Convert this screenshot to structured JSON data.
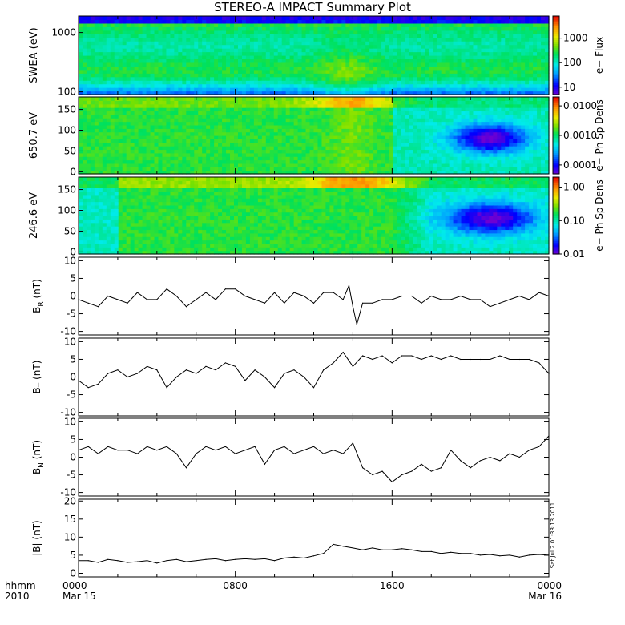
{
  "title": "STEREO-A IMPACT Summary Plot",
  "footer": {
    "row1_label": "hhmm",
    "row2_label": "2010",
    "timestamp": "Sat Jul  2 01:38:13 2011"
  },
  "chart_data": [
    {
      "type": "heatmap",
      "ylabel": "SWEA (eV)",
      "y_scale": "log",
      "ylim": [
        90,
        1900
      ],
      "yticks": [
        "1000",
        "100"
      ],
      "colorbar": {
        "label": "e− Flux",
        "scale": "log",
        "range": [
          5,
          8000
        ],
        "ticks": [
          "1000",
          "100",
          "10"
        ]
      },
      "x_range_hours": [
        0,
        24
      ],
      "features": [
        {
          "time_hours": 13.7,
          "description": "flux enhancement at low energies"
        }
      ]
    },
    {
      "type": "heatmap",
      "ylabel": "650.7 eV",
      "ylim": [
        -5,
        180
      ],
      "yticks": [
        "150",
        "100",
        "50",
        "0"
      ],
      "colorbar": {
        "label": "e− Ph Sp Dens",
        "scale": "log",
        "range": [
          5e-05,
          0.02
        ],
        "ticks": [
          "0.0100",
          "0.0010",
          "0.0001"
        ]
      },
      "x_range_hours": [
        0,
        24
      ]
    },
    {
      "type": "heatmap",
      "ylabel": "246.6 eV",
      "ylim": [
        -5,
        180
      ],
      "yticks": [
        "150",
        "100",
        "50",
        "0"
      ],
      "colorbar": {
        "label": "e− Ph Sp Dens",
        "scale": "log",
        "range": [
          0.01,
          2.0
        ],
        "ticks": [
          "1.00",
          "0.10",
          "0.01"
        ]
      },
      "x_range_hours": [
        0,
        24
      ]
    },
    {
      "type": "line",
      "ylabel": "B",
      "ylabel_sub": "R",
      "ylabel_unit": "(nT)",
      "ylim": [
        -11,
        11
      ],
      "yticks": [
        "10",
        "5",
        "0",
        "-5",
        "-10"
      ],
      "x": [
        0,
        0.5,
        1,
        1.5,
        2,
        2.5,
        3,
        3.5,
        4,
        4.5,
        5,
        5.5,
        6,
        6.5,
        7,
        7.5,
        8,
        8.5,
        9,
        9.5,
        10,
        10.5,
        11,
        11.5,
        12,
        12.5,
        13,
        13.5,
        13.8,
        14,
        14.2,
        14.5,
        15,
        15.5,
        16,
        16.5,
        17,
        17.5,
        18,
        18.5,
        19,
        19.5,
        20,
        20.5,
        21,
        21.5,
        22,
        22.5,
        23,
        23.5,
        24
      ],
      "y": [
        -1,
        -2,
        -3,
        0,
        -1,
        -2,
        1,
        -1,
        -1,
        2,
        0,
        -3,
        -1,
        1,
        -1,
        2,
        2,
        0,
        -1,
        -2,
        1,
        -2,
        1,
        0,
        -2,
        1,
        1,
        -1,
        3,
        -3,
        -8,
        -2,
        -2,
        -1,
        -1,
        0,
        0,
        -2,
        0,
        -1,
        -1,
        0,
        -1,
        -1,
        -3,
        -2,
        -1,
        0,
        -1,
        1,
        0
      ]
    },
    {
      "type": "line",
      "ylabel": "B",
      "ylabel_sub": "T",
      "ylabel_unit": "(nT)",
      "ylim": [
        -11,
        11
      ],
      "yticks": [
        "10",
        "5",
        "0",
        "-5",
        "-10"
      ],
      "x": [
        0,
        0.5,
        1,
        1.5,
        2,
        2.5,
        3,
        3.5,
        4,
        4.5,
        5,
        5.5,
        6,
        6.5,
        7,
        7.5,
        8,
        8.5,
        9,
        9.5,
        10,
        10.5,
        11,
        11.5,
        12,
        12.5,
        13,
        13.5,
        14,
        14.5,
        15,
        15.5,
        16,
        16.5,
        17,
        17.5,
        18,
        18.5,
        19,
        19.5,
        20,
        20.5,
        21,
        21.5,
        22,
        22.5,
        23,
        23.5,
        24
      ],
      "y": [
        -1,
        -3,
        -2,
        1,
        2,
        0,
        1,
        3,
        2,
        -3,
        0,
        2,
        1,
        3,
        2,
        4,
        3,
        -1,
        2,
        0,
        -3,
        1,
        2,
        0,
        -3,
        2,
        4,
        7,
        3,
        6,
        5,
        6,
        4,
        6,
        6,
        5,
        6,
        5,
        6,
        5,
        5,
        5,
        5,
        6,
        5,
        5,
        5,
        4,
        1
      ]
    },
    {
      "type": "line",
      "ylabel": "B",
      "ylabel_sub": "N",
      "ylabel_unit": "(nT)",
      "ylim": [
        -11,
        11
      ],
      "yticks": [
        "10",
        "5",
        "0",
        "-5",
        "-10"
      ],
      "x": [
        0,
        0.5,
        1,
        1.5,
        2,
        2.5,
        3,
        3.5,
        4,
        4.5,
        5,
        5.5,
        6,
        6.5,
        7,
        7.5,
        8,
        8.5,
        9,
        9.5,
        10,
        10.5,
        11,
        11.5,
        12,
        12.5,
        13,
        13.5,
        14,
        14.5,
        15,
        15.5,
        16,
        16.5,
        17,
        17.5,
        18,
        18.5,
        19,
        19.5,
        20,
        20.5,
        21,
        21.5,
        22,
        22.5,
        23,
        23.5,
        24
      ],
      "y": [
        2,
        3,
        1,
        3,
        2,
        2,
        1,
        3,
        2,
        3,
        1,
        -3,
        1,
        3,
        2,
        3,
        1,
        2,
        3,
        -2,
        2,
        3,
        1,
        2,
        3,
        1,
        2,
        1,
        4,
        -3,
        -5,
        -4,
        -7,
        -5,
        -4,
        -2,
        -4,
        -3,
        2,
        -1,
        -3,
        -1,
        0,
        -1,
        1,
        0,
        2,
        3,
        6
      ]
    },
    {
      "type": "line",
      "ylabel": "|B|",
      "ylabel_unit": "(nT)",
      "ylim": [
        -1,
        20.5
      ],
      "yticks": [
        "20",
        "15",
        "10",
        "5",
        "0"
      ],
      "x": [
        0,
        0.5,
        1,
        1.5,
        2,
        2.5,
        3,
        3.5,
        4,
        4.5,
        5,
        5.5,
        6,
        6.5,
        7,
        7.5,
        8,
        8.5,
        9,
        9.5,
        10,
        10.5,
        11,
        11.5,
        12,
        12.5,
        13,
        13.5,
        14,
        14.5,
        15,
        15.5,
        16,
        16.5,
        17,
        17.5,
        18,
        18.5,
        19,
        19.5,
        20,
        20.5,
        21,
        21.5,
        22,
        22.5,
        23,
        23.5,
        24
      ],
      "y": [
        3.5,
        3.5,
        3.0,
        3.8,
        3.5,
        3.0,
        3.2,
        3.5,
        2.8,
        3.5,
        3.8,
        3.2,
        3.5,
        3.8,
        4.0,
        3.5,
        3.8,
        4.0,
        3.8,
        4.0,
        3.5,
        4.2,
        4.5,
        4.2,
        4.8,
        5.5,
        8.0,
        7.5,
        7.0,
        6.5,
        7.0,
        6.5,
        6.5,
        6.8,
        6.5,
        6.0,
        6.0,
        5.5,
        5.8,
        5.5,
        5.5,
        5.0,
        5.2,
        4.8,
        5.0,
        4.5,
        5.0,
        5.2,
        5.0
      ]
    }
  ],
  "x_axis": {
    "tick_labels": [
      "0000",
      "0800",
      "1600",
      "0000"
    ],
    "date_labels": [
      "Mar 15",
      "",
      "",
      "Mar 16"
    ],
    "tick_hours": [
      0,
      8,
      16,
      24
    ],
    "range_hours": [
      0,
      24
    ]
  }
}
